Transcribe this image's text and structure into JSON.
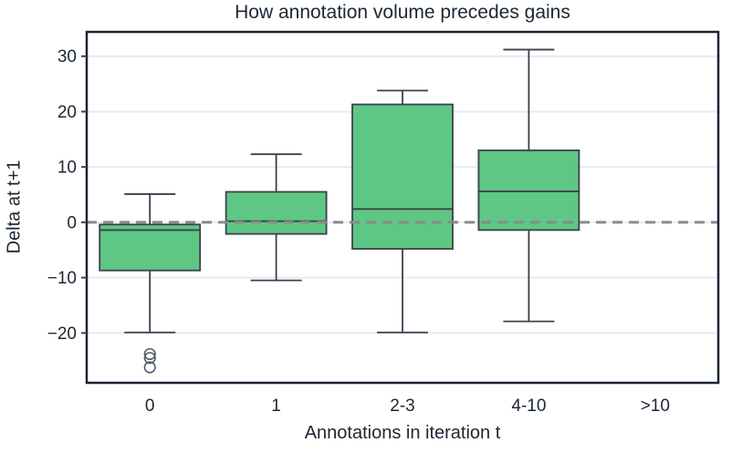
{
  "chart_data": {
    "type": "box",
    "title": "How annotation volume precedes gains",
    "xlabel": "Annotations in iteration t",
    "ylabel": "Delta at t+1",
    "categories": [
      "0",
      "1",
      "2-3",
      "4-10",
      ">10"
    ],
    "yticks": [
      30,
      20,
      10,
      0,
      -10,
      -20
    ],
    "ylim": [
      -29,
      34.4
    ],
    "grid": true,
    "legend": "none",
    "reference_line": {
      "y": 0,
      "style": "dashed"
    },
    "boxes": [
      {
        "category": "0",
        "whislo": -19.9,
        "q1": -8.7,
        "med": -1.4,
        "q3": -0.4,
        "whishi": 5.1,
        "fliers": [
          -23.8,
          -24.5,
          -26.2
        ]
      },
      {
        "category": "1",
        "whislo": -10.5,
        "q1": -2.1,
        "med": 0.2,
        "q3": 5.5,
        "whishi": 12.3,
        "fliers": []
      },
      {
        "category": "2-3",
        "whislo": -19.9,
        "q1": -4.8,
        "med": 2.4,
        "q3": 21.3,
        "whishi": 23.8,
        "fliers": []
      },
      {
        "category": "4-10",
        "whislo": -17.9,
        "q1": -1.4,
        "med": 5.6,
        "q3": 13.0,
        "whishi": 31.2,
        "fliers": []
      },
      null
    ],
    "colors": {
      "box_fill": "#5ec784",
      "box_edge": "#3a404c",
      "whisker": "#3a404c",
      "flier_edge": "#555b66",
      "zero_line": "#8a8a8a",
      "grid": "#e8e9f2",
      "spine": "#1a2433",
      "text": "#1c2733"
    }
  }
}
